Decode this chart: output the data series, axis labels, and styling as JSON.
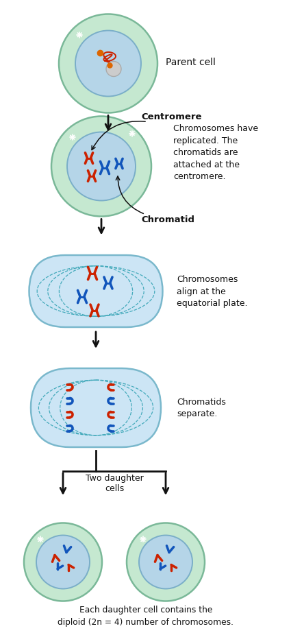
{
  "bg_color": "#ffffff",
  "cell_outer_green": "#c5e8d0",
  "cell_inner_blue": "#b5d5e8",
  "cell_border_green": "#7ab898",
  "cell_border_blue": "#7aaec8",
  "elongated_cell_bg": "#cce5f5",
  "elongated_cell_border": "#7ab8cc",
  "elongated_inner_bg": "#daeef8",
  "red_chrom": "#cc2200",
  "blue_chrom": "#1155bb",
  "arrow_color": "#111111",
  "text_color": "#111111",
  "label_parent": "Parent cell",
  "label_centromere": "Centromere",
  "label_chromatid": "Chromatid",
  "label_replicated": "Chromosomes have\nreplicated. The\nchromatids are\nattached at the\ncentromere.",
  "label_align": "Chromosomes\nalign at the\nequatorial plate.",
  "label_separate": "Chromatids\nseparate.",
  "label_two_daughter": "Two daughter\ncells",
  "label_each_daughter": "Each daughter cell contains the\ndiploid (2n = 4) number of chromosomes.",
  "star_color": "#ffffff",
  "nucleolus_color": "#cccccc",
  "nucleolus_border": "#aaaaaa",
  "orange_dot": "#dd6600",
  "dashed_ellipse_color": "#44aabb"
}
